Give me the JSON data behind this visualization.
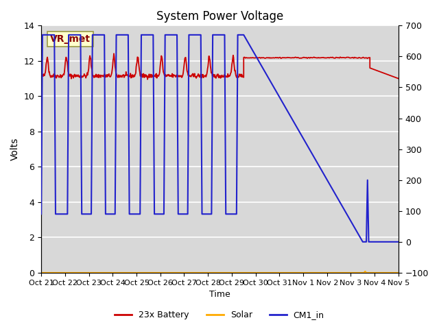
{
  "title": "System Power Voltage",
  "xlabel": "Time",
  "ylabel_left": "Volts",
  "ylim_left": [
    0,
    14
  ],
  "ylim_right": [
    -100,
    700
  ],
  "background_color": "#ffffff",
  "plot_bg_color": "#d8d8d8",
  "grid_color": "#ffffff",
  "annotation_box": "VR_met",
  "annotation_box_color": "#ffffcc",
  "annotation_text_color": "#880000",
  "x_tick_labels": [
    "Oct 21",
    "Oct 22",
    "Oct 23",
    "Oct 24",
    "Oct 25",
    "Oct 26",
    "Oct 27",
    "Oct 28",
    "Oct 29",
    "Oct 30",
    "Oct 31",
    "Nov 1",
    "Nov 2",
    "Nov 3",
    "Nov 4",
    "Nov 5"
  ],
  "figsize": [
    6.4,
    4.8
  ],
  "dpi": 100
}
